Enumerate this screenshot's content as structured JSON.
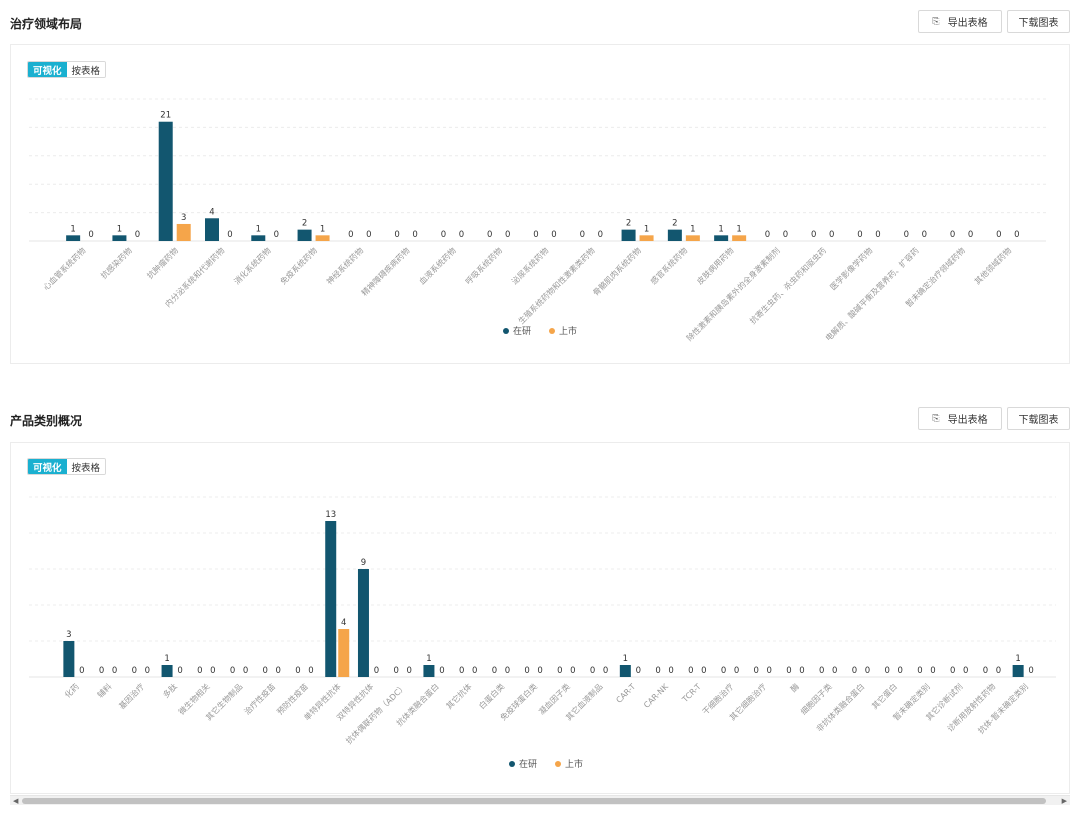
{
  "sections": [
    {
      "title": "治疗领域布局",
      "export_label": "导出表格",
      "download_label": "下载图表",
      "view_visual": "可视化",
      "view_table": "按表格",
      "legend": [
        {
          "label": "在研",
          "color": "#12566f"
        },
        {
          "label": "上市",
          "color": "#f5a54a"
        }
      ]
    },
    {
      "title": "产品类别概况",
      "export_label": "导出表格",
      "download_label": "下载图表",
      "view_visual": "可视化",
      "view_table": "按表格",
      "legend": [
        {
          "label": "在研",
          "color": "#12566f"
        },
        {
          "label": "上市",
          "color": "#f5a54a"
        }
      ]
    }
  ],
  "chart_data": [
    {
      "type": "bar",
      "categories": [
        "心血管系统药物",
        "抗感染药物",
        "抗肿瘤药物",
        "内分泌系统和代谢药物",
        "消化系统药物",
        "免疫系统药物",
        "神经系统药物",
        "精神障碍疾病药物",
        "血液系统药物",
        "呼吸系统药物",
        "泌尿系统药物",
        "生殖系统药物和性激素类药物",
        "骨骼肌肉系统药物",
        "感官系统药物",
        "皮肤病用药物",
        "除性激素和胰岛素外的全身激素制剂",
        "抗寄生虫药、杀虫药和驱虫药",
        "医学影像学药物",
        "电解质、酸碱平衡及营养药、扩容药",
        "暂未确定治疗领域药物",
        "其他领域药物"
      ],
      "series": [
        {
          "name": "在研",
          "color": "#12566f",
          "values": [
            1,
            1,
            21,
            4,
            1,
            2,
            0,
            0,
            0,
            0,
            0,
            0,
            2,
            2,
            1,
            0,
            0,
            0,
            0,
            0,
            0
          ]
        },
        {
          "name": "上市",
          "color": "#f5a54a",
          "values": [
            0,
            0,
            3,
            0,
            0,
            1,
            0,
            0,
            0,
            0,
            0,
            0,
            1,
            1,
            1,
            0,
            0,
            0,
            0,
            0,
            0
          ]
        }
      ],
      "ylim": [
        0,
        25
      ],
      "grid": true,
      "legend_position": "bottom"
    },
    {
      "type": "bar",
      "categories": [
        "化药",
        "辅料",
        "基因治疗",
        "多肽",
        "微生物相关",
        "其它生物制品",
        "治疗性疫苗",
        "预防性疫苗",
        "单特异性抗体",
        "双特异性抗体",
        "抗体偶联药物（ADC）",
        "抗体类融合蛋白",
        "其它抗体",
        "白蛋白类",
        "免疫球蛋白类",
        "凝血因子类",
        "其它血液制品",
        "CAR-T",
        "CAR-NK",
        "TCR-T",
        "干细胞治疗",
        "其它细胞治疗",
        "酶",
        "细胞因子类",
        "非抗体类融合蛋白",
        "其它蛋白",
        "暂未确定类别",
        "其它诊断试剂",
        "诊断用放射性药物",
        "抗体-暂未确定类别"
      ],
      "series": [
        {
          "name": "在研",
          "color": "#12566f",
          "values": [
            3,
            0,
            0,
            1,
            0,
            0,
            0,
            0,
            13,
            9,
            0,
            1,
            0,
            0,
            0,
            0,
            0,
            1,
            0,
            0,
            0,
            0,
            0,
            0,
            0,
            0,
            0,
            0,
            0,
            1
          ]
        },
        {
          "name": "上市",
          "color": "#f5a54a",
          "values": [
            0,
            0,
            0,
            0,
            0,
            0,
            0,
            0,
            4,
            0,
            0,
            0,
            0,
            0,
            0,
            0,
            0,
            0,
            0,
            0,
            0,
            0,
            0,
            0,
            0,
            0,
            0,
            0,
            0,
            0
          ]
        }
      ],
      "ylim": [
        0,
        15
      ],
      "grid": true,
      "legend_position": "bottom"
    }
  ]
}
